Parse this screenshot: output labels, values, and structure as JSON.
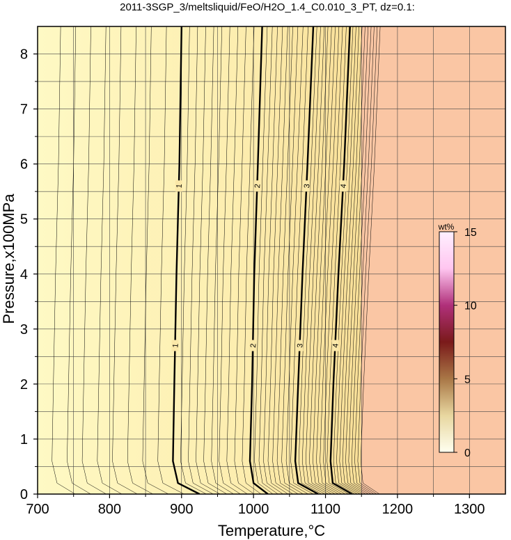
{
  "chart_data": {
    "type": "contour",
    "title": "2011-3SGP_3/meltsliquid/FeO/H2O_1.4_C0.010_3_PT, dz=0.1:",
    "xlabel": "Temperature,°C",
    "ylabel": "Pressure,x100MPa",
    "xlim": [
      700,
      1350
    ],
    "ylim": [
      0,
      8.5
    ],
    "x_ticks": [
      "700",
      "800",
      "900",
      "1000",
      "1100",
      "1200",
      "1300"
    ],
    "y_ticks": [
      "0",
      "1",
      "2",
      "3",
      "4",
      "5",
      "6",
      "7",
      "8"
    ],
    "grid": true,
    "contour_interval": 0.1,
    "major_contours": [
      {
        "label": "1",
        "points": [
          [
            925,
            0
          ],
          [
            895,
            0.2
          ],
          [
            888,
            0.6
          ],
          [
            890,
            2
          ],
          [
            893,
            4
          ],
          [
            897,
            6
          ],
          [
            900,
            8.5
          ]
        ]
      },
      {
        "label": "2",
        "points": [
          [
            1020,
            0
          ],
          [
            1000,
            0.2
          ],
          [
            995,
            0.6
          ],
          [
            998,
            2
          ],
          [
            1001,
            4
          ],
          [
            1006,
            6
          ],
          [
            1012,
            8.5
          ]
        ]
      },
      {
        "label": "3",
        "points": [
          [
            1090,
            0
          ],
          [
            1062,
            0.2
          ],
          [
            1058,
            0.6
          ],
          [
            1062,
            2
          ],
          [
            1068,
            4
          ],
          [
            1075,
            6
          ],
          [
            1083,
            8.5
          ]
        ]
      },
      {
        "label": "4",
        "points": [
          [
            1137,
            0
          ],
          [
            1110,
            0.2
          ],
          [
            1107,
            0.6
          ],
          [
            1111,
            2
          ],
          [
            1118,
            4
          ],
          [
            1126,
            6
          ],
          [
            1134,
            8.5
          ]
        ]
      }
    ],
    "colorbar": {
      "title": "wt%",
      "range": [
        0,
        15
      ],
      "ticks": [
        "0",
        "5",
        "10",
        "15"
      ],
      "colors": [
        "#fffff0",
        "#e8d7a0",
        "#a97746",
        "#7a1a1a",
        "#b0307a",
        "#ffc6f0",
        "#fff0ff"
      ]
    },
    "fill_colors": {
      "low": "#fef9c4",
      "high": "#fac6a4",
      "boundary_temperature": 1150
    }
  }
}
